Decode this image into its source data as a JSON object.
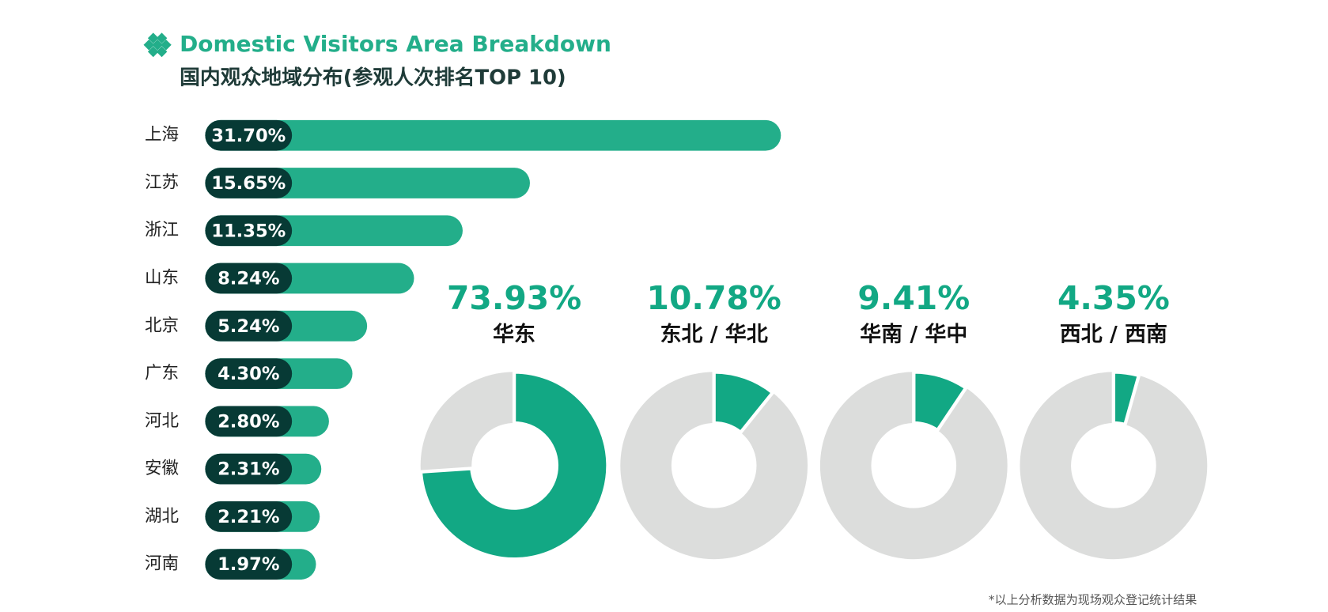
{
  "chart_data": [
    {
      "type": "bar",
      "title": "Domestic Visitors Area Breakdown",
      "subtitle": "国内观众地域分布(参观人次排名TOP 10)",
      "categories": [
        "上海",
        "江苏",
        "浙江",
        "山东",
        "北京",
        "广东",
        "河北",
        "安徽",
        "湖北",
        "河南"
      ],
      "values": [
        31.7,
        15.65,
        11.35,
        8.24,
        5.24,
        4.3,
        2.8,
        2.31,
        2.21,
        1.97
      ],
      "value_labels": [
        "31.70%",
        "15.65%",
        "11.35%",
        "8.24%",
        "5.24%",
        "4.30%",
        "2.80%",
        "2.31%",
        "2.21%",
        "1.97%"
      ],
      "color": "#23ae8a",
      "label_color": "#073a35",
      "note": "*以上分析数据为现场观众登记统计结果"
    },
    {
      "type": "donut",
      "categories": [
        "华东",
        "东北 / 华北",
        "华南 / 华中",
        "西北 / 西南"
      ],
      "values": [
        73.93,
        10.78,
        9.41,
        4.35
      ],
      "value_labels": [
        "73.93%",
        "10.78%",
        "9.41%",
        "4.35%"
      ],
      "color": "#12a884",
      "rest_color": "#dcdddc"
    }
  ]
}
